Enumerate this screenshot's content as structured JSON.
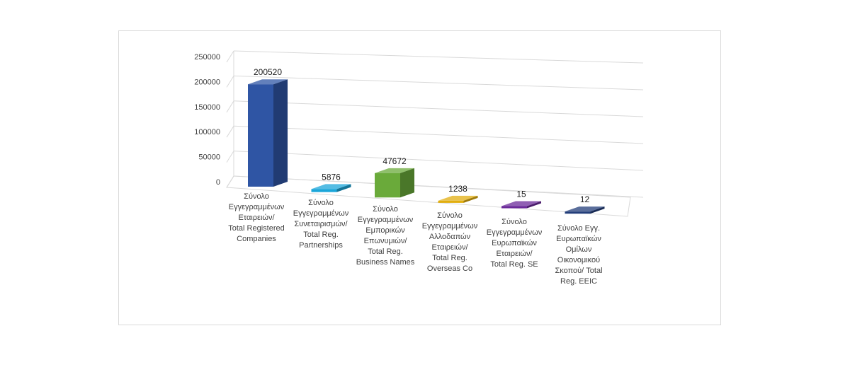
{
  "chart_data": {
    "type": "bar",
    "style": "3d-column",
    "title": "",
    "xlabel": "",
    "ylabel": "",
    "ylim": [
      0,
      250000
    ],
    "yticks": [
      0,
      50000,
      100000,
      150000,
      200000,
      250000
    ],
    "grid": true,
    "legend": "none",
    "categories": [
      [
        "Σύνολο",
        "Εγγεγραμμένων",
        "Εταιρειών/",
        "Total Registered",
        "Companies"
      ],
      [
        "Σύνολο",
        "Εγγεγραμμένων",
        "Συνεταιρισμών/",
        "Total Reg.",
        "Partnerships"
      ],
      [
        "Σύνολο",
        "Εγγεγραμμένων",
        "Εμπορικών",
        "Επωνυμιών/",
        "Total Reg.",
        "Business Names"
      ],
      [
        "Σύνολο",
        "Εγγεγραμμένων",
        "Αλλοδαπών",
        "Εταιρειών/",
        "Total Reg.",
        "Overseas Co"
      ],
      [
        "Σύνολο",
        "Εγγεγραμμένων",
        "Ευρωπαϊκών",
        "Εταιρειών/",
        "Total Reg. SE"
      ],
      [
        "Σύνολο Εγγ.",
        "Ευρωπαϊκών",
        "Ομίλων",
        "Οικονομικού",
        "Σκοπού/ Total",
        "Reg. EEIC"
      ]
    ],
    "values": [
      200520,
      5876,
      47672,
      1238,
      15,
      12
    ],
    "data_labels": [
      "200520",
      "5876",
      "47672",
      "1238",
      "15",
      "12"
    ],
    "colors": [
      "#2f55a4",
      "#1ba6d9",
      "#6aaa3a",
      "#e1ae10",
      "#6b2a9a",
      "#233e7a"
    ]
  }
}
